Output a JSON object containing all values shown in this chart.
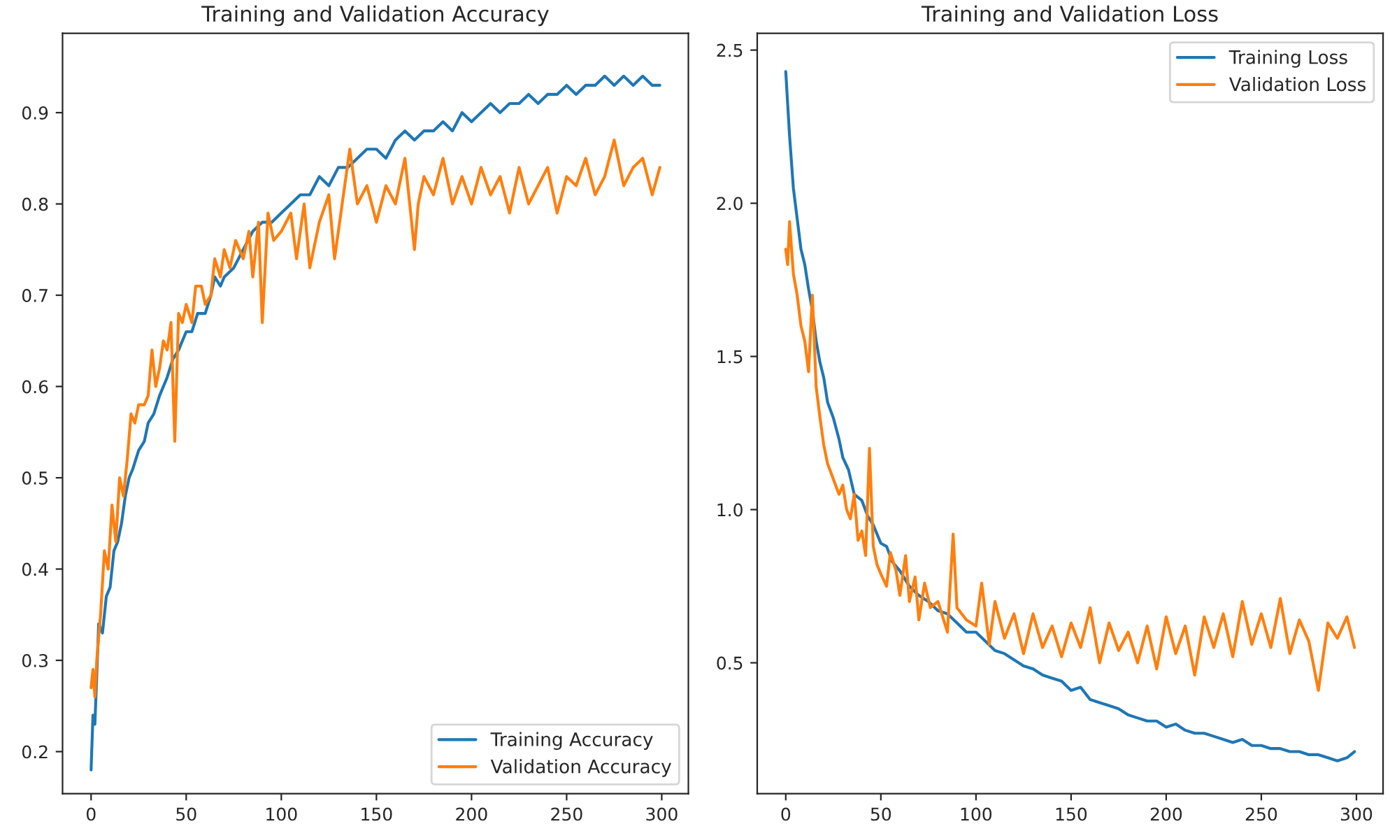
{
  "chart_data": [
    {
      "type": "line",
      "title": "Training and Validation Accuracy",
      "xlim": [
        -15,
        314
      ],
      "ylim": [
        0.154,
        0.987
      ],
      "xticks": [
        0,
        50,
        100,
        150,
        200,
        250,
        300
      ],
      "yticks": [
        0.2,
        0.3,
        0.4,
        0.5,
        0.6,
        0.7,
        0.8,
        0.9
      ],
      "grid": false,
      "legend": "bottom right",
      "series": [
        {
          "name": "Training Accuracy",
          "color": "#1f77b4",
          "x": [
            0,
            1,
            2,
            4,
            6,
            8,
            10,
            12,
            14,
            16,
            18,
            20,
            22,
            25,
            28,
            30,
            33,
            36,
            40,
            43,
            46,
            50,
            53,
            56,
            60,
            63,
            65,
            68,
            70,
            75,
            80,
            85,
            90,
            95,
            100,
            105,
            110,
            115,
            120,
            125,
            130,
            135,
            140,
            145,
            150,
            155,
            160,
            165,
            170,
            175,
            180,
            185,
            190,
            195,
            200,
            205,
            210,
            215,
            220,
            225,
            230,
            235,
            240,
            245,
            250,
            255,
            260,
            265,
            270,
            275,
            280,
            285,
            290,
            295,
            299
          ],
          "values": [
            0.18,
            0.24,
            0.23,
            0.34,
            0.33,
            0.37,
            0.38,
            0.42,
            0.43,
            0.45,
            0.48,
            0.5,
            0.51,
            0.53,
            0.54,
            0.56,
            0.57,
            0.59,
            0.61,
            0.63,
            0.64,
            0.66,
            0.66,
            0.68,
            0.68,
            0.7,
            0.72,
            0.71,
            0.72,
            0.73,
            0.75,
            0.77,
            0.78,
            0.78,
            0.79,
            0.8,
            0.81,
            0.81,
            0.83,
            0.82,
            0.84,
            0.84,
            0.85,
            0.86,
            0.86,
            0.85,
            0.87,
            0.88,
            0.87,
            0.88,
            0.88,
            0.89,
            0.88,
            0.9,
            0.89,
            0.9,
            0.91,
            0.9,
            0.91,
            0.91,
            0.92,
            0.91,
            0.92,
            0.92,
            0.93,
            0.92,
            0.93,
            0.93,
            0.94,
            0.93,
            0.94,
            0.93,
            0.94,
            0.93,
            0.93
          ]
        },
        {
          "name": "Validation Accuracy",
          "color": "#ff7f0e",
          "x": [
            0,
            1,
            2,
            3,
            5,
            7,
            9,
            11,
            13,
            15,
            17,
            19,
            21,
            23,
            25,
            28,
            30,
            32,
            34,
            36,
            38,
            40,
            42,
            44,
            46,
            48,
            50,
            53,
            55,
            58,
            60,
            63,
            65,
            68,
            70,
            73,
            76,
            80,
            83,
            85,
            88,
            90,
            93,
            96,
            100,
            105,
            108,
            112,
            115,
            120,
            125,
            128,
            132,
            136,
            140,
            145,
            150,
            155,
            160,
            165,
            170,
            172,
            175,
            180,
            185,
            190,
            195,
            200,
            205,
            210,
            215,
            220,
            225,
            230,
            235,
            240,
            245,
            250,
            255,
            260,
            265,
            270,
            275,
            280,
            285,
            290,
            295,
            299
          ],
          "values": [
            0.27,
            0.29,
            0.26,
            0.3,
            0.35,
            0.42,
            0.4,
            0.47,
            0.43,
            0.5,
            0.48,
            0.52,
            0.57,
            0.56,
            0.58,
            0.58,
            0.59,
            0.64,
            0.6,
            0.62,
            0.65,
            0.64,
            0.67,
            0.54,
            0.68,
            0.67,
            0.69,
            0.67,
            0.71,
            0.71,
            0.69,
            0.7,
            0.74,
            0.72,
            0.75,
            0.73,
            0.76,
            0.74,
            0.77,
            0.72,
            0.78,
            0.67,
            0.79,
            0.76,
            0.77,
            0.79,
            0.74,
            0.8,
            0.73,
            0.78,
            0.81,
            0.74,
            0.8,
            0.86,
            0.8,
            0.82,
            0.78,
            0.82,
            0.8,
            0.85,
            0.75,
            0.8,
            0.83,
            0.81,
            0.85,
            0.8,
            0.83,
            0.8,
            0.84,
            0.81,
            0.83,
            0.79,
            0.84,
            0.8,
            0.82,
            0.84,
            0.79,
            0.83,
            0.82,
            0.85,
            0.81,
            0.83,
            0.87,
            0.82,
            0.84,
            0.85,
            0.81,
            0.84
          ]
        }
      ]
    },
    {
      "type": "line",
      "title": "Training and Validation Loss",
      "xlim": [
        -15,
        314
      ],
      "ylim": [
        0.073,
        2.555
      ],
      "xticks": [
        0,
        50,
        100,
        150,
        200,
        250,
        300
      ],
      "yticks": [
        0.5,
        {
          "value": 1.0,
          "label": "1.0"
        },
        1.5,
        {
          "value": 2.0,
          "label": "2.0"
        },
        2.5
      ],
      "grid": false,
      "legend": "top right",
      "series": [
        {
          "name": "Training Loss",
          "color": "#1f77b4",
          "x": [
            0,
            2,
            4,
            6,
            8,
            10,
            12,
            14,
            16,
            18,
            20,
            22,
            25,
            28,
            30,
            33,
            36,
            40,
            43,
            46,
            50,
            53,
            56,
            60,
            65,
            70,
            75,
            80,
            85,
            90,
            95,
            100,
            105,
            110,
            115,
            120,
            125,
            130,
            135,
            140,
            145,
            150,
            155,
            160,
            165,
            170,
            175,
            180,
            185,
            190,
            195,
            200,
            205,
            210,
            215,
            220,
            225,
            230,
            235,
            240,
            245,
            250,
            255,
            260,
            265,
            270,
            275,
            280,
            285,
            290,
            295,
            299
          ],
          "values": [
            2.43,
            2.22,
            2.05,
            1.95,
            1.85,
            1.8,
            1.72,
            1.65,
            1.55,
            1.48,
            1.43,
            1.35,
            1.3,
            1.23,
            1.17,
            1.13,
            1.05,
            1.03,
            0.98,
            0.95,
            0.89,
            0.88,
            0.83,
            0.8,
            0.75,
            0.72,
            0.7,
            0.67,
            0.66,
            0.63,
            0.6,
            0.6,
            0.57,
            0.54,
            0.53,
            0.51,
            0.49,
            0.48,
            0.46,
            0.45,
            0.44,
            0.41,
            0.42,
            0.38,
            0.37,
            0.36,
            0.35,
            0.33,
            0.32,
            0.31,
            0.31,
            0.29,
            0.3,
            0.28,
            0.27,
            0.27,
            0.26,
            0.25,
            0.24,
            0.25,
            0.23,
            0.23,
            0.22,
            0.22,
            0.21,
            0.21,
            0.2,
            0.2,
            0.19,
            0.18,
            0.19,
            0.21
          ]
        },
        {
          "name": "Validation Loss",
          "color": "#ff7f0e",
          "x": [
            0,
            1,
            2,
            4,
            6,
            8,
            10,
            12,
            14,
            16,
            18,
            20,
            22,
            25,
            28,
            30,
            32,
            34,
            36,
            38,
            40,
            42,
            44,
            46,
            48,
            50,
            53,
            55,
            58,
            60,
            63,
            65,
            68,
            70,
            73,
            76,
            80,
            85,
            88,
            90,
            95,
            100,
            103,
            107,
            110,
            115,
            120,
            125,
            130,
            135,
            140,
            145,
            150,
            155,
            160,
            165,
            170,
            175,
            180,
            185,
            190,
            195,
            200,
            205,
            210,
            215,
            220,
            225,
            230,
            235,
            240,
            245,
            250,
            255,
            260,
            265,
            270,
            275,
            280,
            285,
            290,
            295,
            299
          ],
          "values": [
            1.85,
            1.8,
            1.94,
            1.77,
            1.7,
            1.6,
            1.55,
            1.45,
            1.7,
            1.4,
            1.3,
            1.21,
            1.15,
            1.1,
            1.05,
            1.08,
            1.0,
            0.97,
            1.05,
            0.9,
            0.93,
            0.85,
            1.2,
            0.88,
            0.82,
            0.79,
            0.75,
            0.86,
            0.8,
            0.72,
            0.85,
            0.7,
            0.78,
            0.64,
            0.76,
            0.68,
            0.7,
            0.6,
            0.92,
            0.68,
            0.64,
            0.62,
            0.76,
            0.56,
            0.7,
            0.58,
            0.66,
            0.53,
            0.66,
            0.55,
            0.62,
            0.52,
            0.63,
            0.55,
            0.68,
            0.5,
            0.63,
            0.54,
            0.6,
            0.5,
            0.62,
            0.48,
            0.65,
            0.53,
            0.62,
            0.46,
            0.65,
            0.55,
            0.66,
            0.52,
            0.7,
            0.56,
            0.66,
            0.55,
            0.71,
            0.53,
            0.64,
            0.57,
            0.41,
            0.63,
            0.58,
            0.65,
            0.55
          ]
        }
      ]
    }
  ]
}
